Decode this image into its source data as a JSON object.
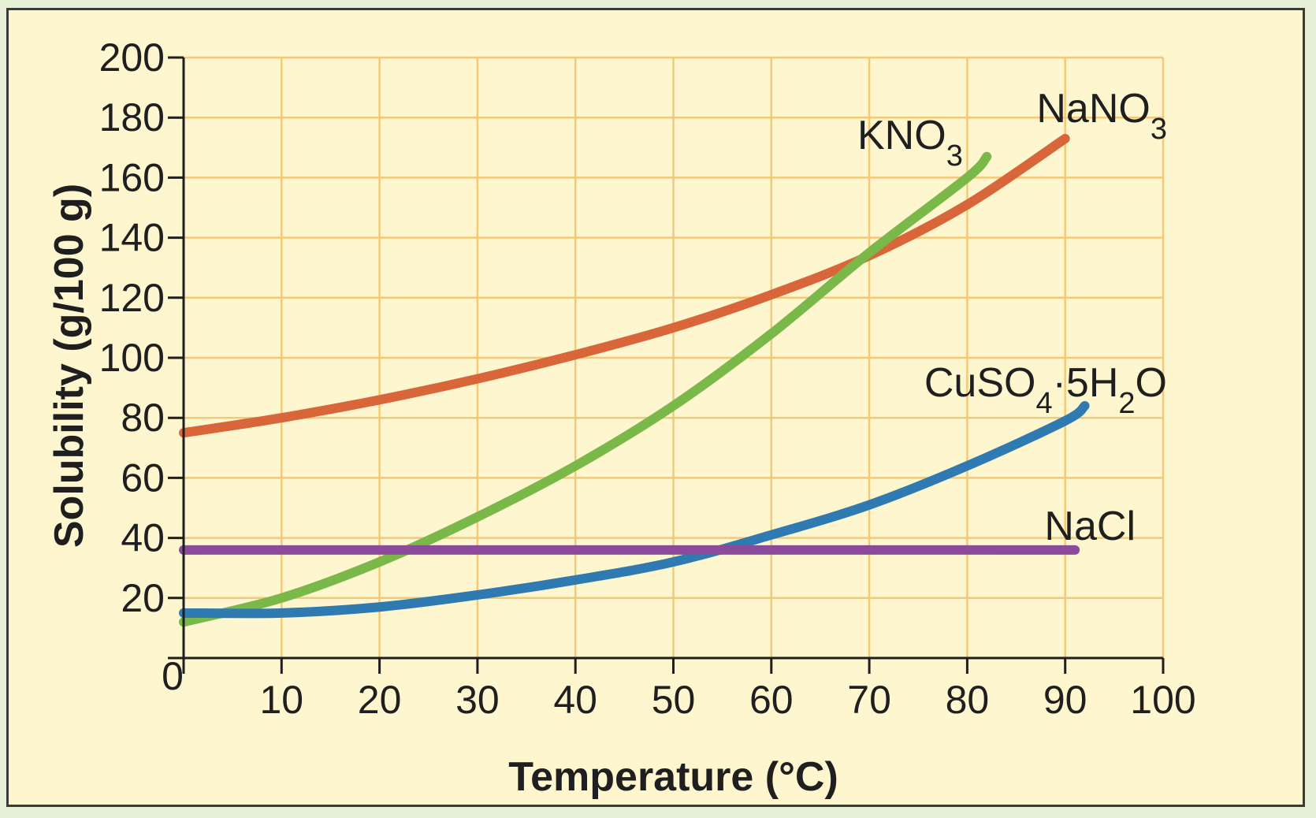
{
  "chart_data": {
    "type": "line",
    "title": "",
    "xlabel": "Temperature (°C)",
    "ylabel": "Solubility (g/100 g)",
    "xlim": [
      0,
      100
    ],
    "ylim": [
      0,
      200
    ],
    "grid": true,
    "x_ticks": [
      0,
      10,
      20,
      30,
      40,
      50,
      60,
      70,
      80,
      90,
      100
    ],
    "y_ticks": [
      0,
      20,
      40,
      60,
      80,
      100,
      120,
      140,
      160,
      180,
      200
    ],
    "x_tick_labels": [
      "",
      "10",
      "20",
      "30",
      "40",
      "50",
      "60",
      "70",
      "80",
      "90",
      "100"
    ],
    "y_tick_labels": [
      "",
      "20",
      "40",
      "60",
      "80",
      "100",
      "120",
      "140",
      "160",
      "180",
      "200"
    ],
    "origin_label": "0",
    "series": [
      {
        "name": "NaNO3",
        "label": {
          "main": "NaNO",
          "sub": "3",
          "rest": ""
        },
        "color": "#d9663a",
        "x": [
          0,
          10,
          20,
          30,
          40,
          50,
          60,
          70,
          80,
          90
        ],
        "y": [
          75,
          80,
          86,
          93,
          101,
          110,
          121,
          134,
          151,
          173
        ]
      },
      {
        "name": "KNO3",
        "label": {
          "main": "KNO",
          "sub": "3",
          "rest": ""
        },
        "color": "#7ab84a",
        "x": [
          0,
          10,
          20,
          30,
          40,
          50,
          60,
          70,
          80,
          82
        ],
        "y": [
          12,
          20,
          32,
          47,
          64,
          84,
          108,
          135,
          160,
          167
        ]
      },
      {
        "name": "CuSO4·5H2O",
        "label": {
          "main": "CuSO",
          "sub": "4",
          "rest": "·5H",
          "sub2": "2",
          "rest2": "O"
        },
        "color": "#2f7bb1",
        "x": [
          0,
          10,
          20,
          30,
          40,
          50,
          60,
          70,
          80,
          90,
          92
        ],
        "y": [
          15,
          15,
          17,
          21,
          26,
          32,
          41,
          51,
          64,
          79,
          84
        ]
      },
      {
        "name": "NaCl",
        "label": {
          "main": "NaCl"
        },
        "color": "#8c4a9a",
        "x": [
          0,
          91
        ],
        "y": [
          36,
          36
        ]
      }
    ]
  }
}
